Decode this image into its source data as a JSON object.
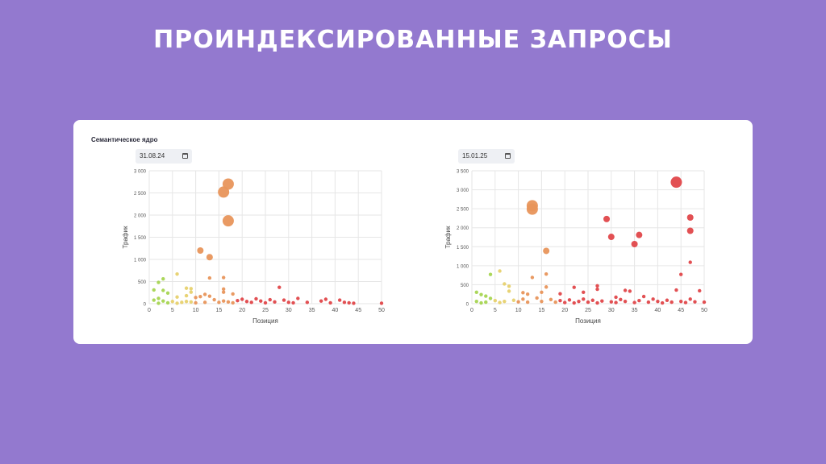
{
  "slide": {
    "title": "ПРОИНДЕКСИРОВАННЫЕ ЗАПРОСЫ"
  },
  "card": {
    "label": "Семантическое ядро"
  },
  "colors": {
    "background": "#9379cf",
    "green": "#a6d552",
    "yellow": "#e7d16e",
    "orange": "#e8955b",
    "red": "#e0474a"
  },
  "chart_data": [
    {
      "type": "scatter",
      "date": "31.08.24",
      "icon": "calendar-icon",
      "xlabel": "Позиция",
      "ylabel": "Трафик",
      "xlim": [
        0,
        50
      ],
      "ylim": [
        0,
        3000
      ],
      "xticks": [
        0,
        5,
        10,
        15,
        20,
        25,
        30,
        35,
        40,
        45,
        50
      ],
      "yticks": [
        0,
        500,
        1000,
        1500,
        2000,
        2500,
        3000
      ],
      "ytick_labels": [
        "0",
        "500",
        "1 000",
        "1 500",
        "2 000",
        "2 500",
        "3 000"
      ],
      "points": [
        {
          "x": 16,
          "y": 2520,
          "s": 2
        },
        {
          "x": 17,
          "y": 2700,
          "s": 2
        },
        {
          "x": 17,
          "y": 1870,
          "s": 2
        },
        {
          "x": 11,
          "y": 1200,
          "s": 1
        },
        {
          "x": 13,
          "y": 1050,
          "s": 1
        },
        {
          "x": 6,
          "y": 670,
          "s": 0
        },
        {
          "x": 16,
          "y": 590,
          "s": 0
        },
        {
          "x": 13,
          "y": 580,
          "s": 0
        },
        {
          "x": 3,
          "y": 560,
          "s": 0
        },
        {
          "x": 2,
          "y": 480,
          "s": 0
        },
        {
          "x": 8,
          "y": 350,
          "s": 0
        },
        {
          "x": 9,
          "y": 340,
          "s": 0
        },
        {
          "x": 16,
          "y": 330,
          "s": 0
        },
        {
          "x": 1,
          "y": 310,
          "s": 0
        },
        {
          "x": 3,
          "y": 300,
          "s": 0
        },
        {
          "x": 28,
          "y": 370,
          "s": 0
        },
        {
          "x": 18,
          "y": 220,
          "s": 0
        },
        {
          "x": 16,
          "y": 260,
          "s": 0
        },
        {
          "x": 12,
          "y": 210,
          "s": 0
        },
        {
          "x": 9,
          "y": 260,
          "s": 0
        },
        {
          "x": 4,
          "y": 240,
          "s": 0
        },
        {
          "x": 6,
          "y": 150,
          "s": 0
        },
        {
          "x": 8,
          "y": 180,
          "s": 0
        },
        {
          "x": 10,
          "y": 140,
          "s": 0
        },
        {
          "x": 11,
          "y": 160,
          "s": 0
        },
        {
          "x": 13,
          "y": 170,
          "s": 0
        },
        {
          "x": 14,
          "y": 90,
          "s": 0
        },
        {
          "x": 2,
          "y": 120,
          "s": 0
        },
        {
          "x": 1,
          "y": 80,
          "s": 0
        },
        {
          "x": 3,
          "y": 60,
          "s": 0
        },
        {
          "x": 5,
          "y": 50,
          "s": 0
        },
        {
          "x": 7,
          "y": 30,
          "s": 0
        },
        {
          "x": 8,
          "y": 50,
          "s": 0
        },
        {
          "x": 9,
          "y": 40,
          "s": 0
        },
        {
          "x": 10,
          "y": 20,
          "s": 0
        },
        {
          "x": 12,
          "y": 30,
          "s": 0
        },
        {
          "x": 15,
          "y": 30,
          "s": 0
        },
        {
          "x": 16,
          "y": 60,
          "s": 0
        },
        {
          "x": 17,
          "y": 40,
          "s": 0
        },
        {
          "x": 18,
          "y": 20,
          "s": 0
        },
        {
          "x": 19,
          "y": 70,
          "s": 0
        },
        {
          "x": 20,
          "y": 100,
          "s": 0
        },
        {
          "x": 21,
          "y": 50,
          "s": 0
        },
        {
          "x": 22,
          "y": 30,
          "s": 0
        },
        {
          "x": 23,
          "y": 110,
          "s": 0
        },
        {
          "x": 24,
          "y": 60,
          "s": 0
        },
        {
          "x": 25,
          "y": 20,
          "s": 0
        },
        {
          "x": 26,
          "y": 90,
          "s": 0
        },
        {
          "x": 27,
          "y": 40,
          "s": 0
        },
        {
          "x": 29,
          "y": 80,
          "s": 0
        },
        {
          "x": 30,
          "y": 30,
          "s": 0
        },
        {
          "x": 31,
          "y": 20,
          "s": 0
        },
        {
          "x": 32,
          "y": 120,
          "s": 0
        },
        {
          "x": 34,
          "y": 30,
          "s": 0
        },
        {
          "x": 37,
          "y": 60,
          "s": 0
        },
        {
          "x": 38,
          "y": 100,
          "s": 0
        },
        {
          "x": 39,
          "y": 20,
          "s": 0
        },
        {
          "x": 41,
          "y": 80,
          "s": 0
        },
        {
          "x": 42,
          "y": 30,
          "s": 0
        },
        {
          "x": 43,
          "y": 20,
          "s": 0
        },
        {
          "x": 44,
          "y": 10,
          "s": 0
        },
        {
          "x": 50,
          "y": 10,
          "s": 0
        },
        {
          "x": 4,
          "y": 20,
          "s": 0
        },
        {
          "x": 6,
          "y": 10,
          "s": 0
        },
        {
          "x": 2,
          "y": 10,
          "s": 0
        }
      ]
    },
    {
      "type": "scatter",
      "date": "15.01.25",
      "icon": "calendar-icon",
      "xlabel": "Позиция",
      "ylabel": "Трафик",
      "xlim": [
        0,
        50
      ],
      "ylim": [
        0,
        3500
      ],
      "xticks": [
        0,
        5,
        10,
        15,
        20,
        25,
        30,
        35,
        40,
        45,
        50
      ],
      "yticks": [
        0,
        500,
        1000,
        1500,
        2000,
        2500,
        3000,
        3500
      ],
      "ytick_labels": [
        "0",
        "500",
        "1 000",
        "1 500",
        "2 000",
        "2 500",
        "3 000",
        "3 500"
      ],
      "points": [
        {
          "x": 44,
          "y": 3200,
          "s": 2
        },
        {
          "x": 13,
          "y": 2580,
          "s": 2
        },
        {
          "x": 13,
          "y": 2490,
          "s": 2
        },
        {
          "x": 29,
          "y": 2230,
          "s": 1
        },
        {
          "x": 47,
          "y": 2270,
          "s": 1
        },
        {
          "x": 47,
          "y": 1920,
          "s": 1
        },
        {
          "x": 36,
          "y": 1810,
          "s": 1
        },
        {
          "x": 30,
          "y": 1760,
          "s": 1
        },
        {
          "x": 35,
          "y": 1570,
          "s": 1
        },
        {
          "x": 16,
          "y": 1390,
          "s": 1
        },
        {
          "x": 47,
          "y": 1090,
          "s": 0
        },
        {
          "x": 6,
          "y": 860,
          "s": 0
        },
        {
          "x": 4,
          "y": 770,
          "s": 0
        },
        {
          "x": 16,
          "y": 780,
          "s": 0
        },
        {
          "x": 45,
          "y": 770,
          "s": 0
        },
        {
          "x": 13,
          "y": 690,
          "s": 0
        },
        {
          "x": 7,
          "y": 520,
          "s": 0
        },
        {
          "x": 8,
          "y": 460,
          "s": 0
        },
        {
          "x": 22,
          "y": 430,
          "s": 0
        },
        {
          "x": 27,
          "y": 470,
          "s": 0
        },
        {
          "x": 16,
          "y": 440,
          "s": 0
        },
        {
          "x": 1,
          "y": 300,
          "s": 0
        },
        {
          "x": 2,
          "y": 240,
          "s": 0
        },
        {
          "x": 3,
          "y": 200,
          "s": 0
        },
        {
          "x": 8,
          "y": 330,
          "s": 0
        },
        {
          "x": 11,
          "y": 290,
          "s": 0
        },
        {
          "x": 12,
          "y": 250,
          "s": 0
        },
        {
          "x": 15,
          "y": 300,
          "s": 0
        },
        {
          "x": 19,
          "y": 260,
          "s": 0
        },
        {
          "x": 24,
          "y": 300,
          "s": 0
        },
        {
          "x": 27,
          "y": 380,
          "s": 0
        },
        {
          "x": 31,
          "y": 170,
          "s": 0
        },
        {
          "x": 33,
          "y": 350,
          "s": 0
        },
        {
          "x": 34,
          "y": 330,
          "s": 0
        },
        {
          "x": 37,
          "y": 190,
          "s": 0
        },
        {
          "x": 39,
          "y": 120,
          "s": 0
        },
        {
          "x": 44,
          "y": 360,
          "s": 0
        },
        {
          "x": 49,
          "y": 340,
          "s": 0
        },
        {
          "x": 4,
          "y": 140,
          "s": 0
        },
        {
          "x": 5,
          "y": 80,
          "s": 0
        },
        {
          "x": 6,
          "y": 30,
          "s": 0
        },
        {
          "x": 7,
          "y": 60,
          "s": 0
        },
        {
          "x": 9,
          "y": 90,
          "s": 0
        },
        {
          "x": 10,
          "y": 50,
          "s": 0
        },
        {
          "x": 11,
          "y": 120,
          "s": 0
        },
        {
          "x": 12,
          "y": 40,
          "s": 0
        },
        {
          "x": 14,
          "y": 150,
          "s": 0
        },
        {
          "x": 15,
          "y": 60,
          "s": 0
        },
        {
          "x": 17,
          "y": 110,
          "s": 0
        },
        {
          "x": 18,
          "y": 40,
          "s": 0
        },
        {
          "x": 19,
          "y": 80,
          "s": 0
        },
        {
          "x": 20,
          "y": 30,
          "s": 0
        },
        {
          "x": 21,
          "y": 100,
          "s": 0
        },
        {
          "x": 22,
          "y": 20,
          "s": 0
        },
        {
          "x": 23,
          "y": 60,
          "s": 0
        },
        {
          "x": 24,
          "y": 120,
          "s": 0
        },
        {
          "x": 25,
          "y": 40,
          "s": 0
        },
        {
          "x": 26,
          "y": 90,
          "s": 0
        },
        {
          "x": 27,
          "y": 20,
          "s": 0
        },
        {
          "x": 28,
          "y": 70,
          "s": 0
        },
        {
          "x": 30,
          "y": 50,
          "s": 0
        },
        {
          "x": 31,
          "y": 30,
          "s": 0
        },
        {
          "x": 32,
          "y": 110,
          "s": 0
        },
        {
          "x": 33,
          "y": 60,
          "s": 0
        },
        {
          "x": 35,
          "y": 30,
          "s": 0
        },
        {
          "x": 36,
          "y": 80,
          "s": 0
        },
        {
          "x": 38,
          "y": 40,
          "s": 0
        },
        {
          "x": 40,
          "y": 60,
          "s": 0
        },
        {
          "x": 41,
          "y": 20,
          "s": 0
        },
        {
          "x": 42,
          "y": 90,
          "s": 0
        },
        {
          "x": 43,
          "y": 40,
          "s": 0
        },
        {
          "x": 45,
          "y": 60,
          "s": 0
        },
        {
          "x": 46,
          "y": 30,
          "s": 0
        },
        {
          "x": 47,
          "y": 120,
          "s": 0
        },
        {
          "x": 48,
          "y": 50,
          "s": 0
        },
        {
          "x": 50,
          "y": 40,
          "s": 0
        },
        {
          "x": 1,
          "y": 60,
          "s": 0
        },
        {
          "x": 2,
          "y": 20,
          "s": 0
        },
        {
          "x": 3,
          "y": 40,
          "s": 0
        }
      ]
    }
  ]
}
